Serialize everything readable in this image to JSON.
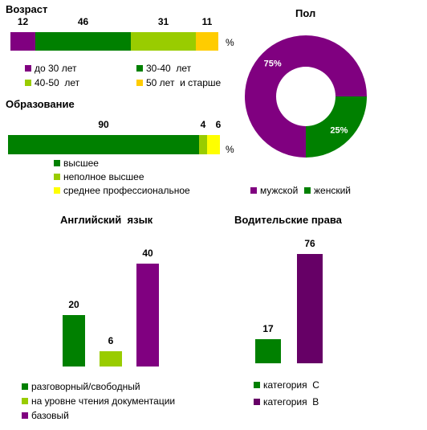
{
  "colors": {
    "purple": "#800080",
    "green": "#008000",
    "lightgreen": "#99cc00",
    "yellow": "#ffcc00",
    "brightyellow": "#ffff00"
  },
  "chart_data": [
    {
      "type": "bar",
      "stacked": true,
      "orientation": "horizontal",
      "title": "Возраст",
      "unit": "%",
      "series": [
        {
          "name": "до 30 лет",
          "values": [
            12
          ],
          "color": "#800080"
        },
        {
          "name": "30-40  лет",
          "values": [
            46
          ],
          "color": "#008000"
        },
        {
          "name": "40-50  лет",
          "values": [
            31
          ],
          "color": "#99cc00"
        },
        {
          "name": "50 лет  и старше",
          "values": [
            11
          ],
          "color": "#ffcc00"
        }
      ]
    },
    {
      "type": "bar",
      "stacked": true,
      "orientation": "horizontal",
      "title": "Образование",
      "unit": "%",
      "series": [
        {
          "name": "высшее",
          "values": [
            90
          ],
          "color": "#008000"
        },
        {
          "name": "неполное высшее",
          "values": [
            4
          ],
          "color": "#99cc00"
        },
        {
          "name": "среднее профессиональное",
          "values": [
            6
          ],
          "color": "#ffff00"
        }
      ]
    },
    {
      "type": "pie",
      "donut": true,
      "title": "Пол",
      "slices": [
        {
          "name": "мужской",
          "value": 75,
          "label": "75%",
          "color": "#800080"
        },
        {
          "name": "женский",
          "value": 25,
          "label": "25%",
          "color": "#008000"
        }
      ]
    },
    {
      "type": "bar",
      "title": "Английский  язык",
      "ylim": [
        0,
        40
      ],
      "series": [
        {
          "name": "разговорный/свободный",
          "values": [
            20
          ],
          "color": "#008000"
        },
        {
          "name": "на уровне чтения документации",
          "values": [
            6
          ],
          "color": "#99cc00"
        },
        {
          "name": "базовый",
          "values": [
            40
          ],
          "color": "#800080"
        }
      ]
    },
    {
      "type": "bar",
      "title": "Водительские права",
      "ylim": [
        0,
        76
      ],
      "series": [
        {
          "name": "категория  С",
          "values": [
            17
          ],
          "color": "#008000"
        },
        {
          "name": "категория  В",
          "values": [
            76
          ],
          "color": "#660066"
        }
      ]
    }
  ]
}
